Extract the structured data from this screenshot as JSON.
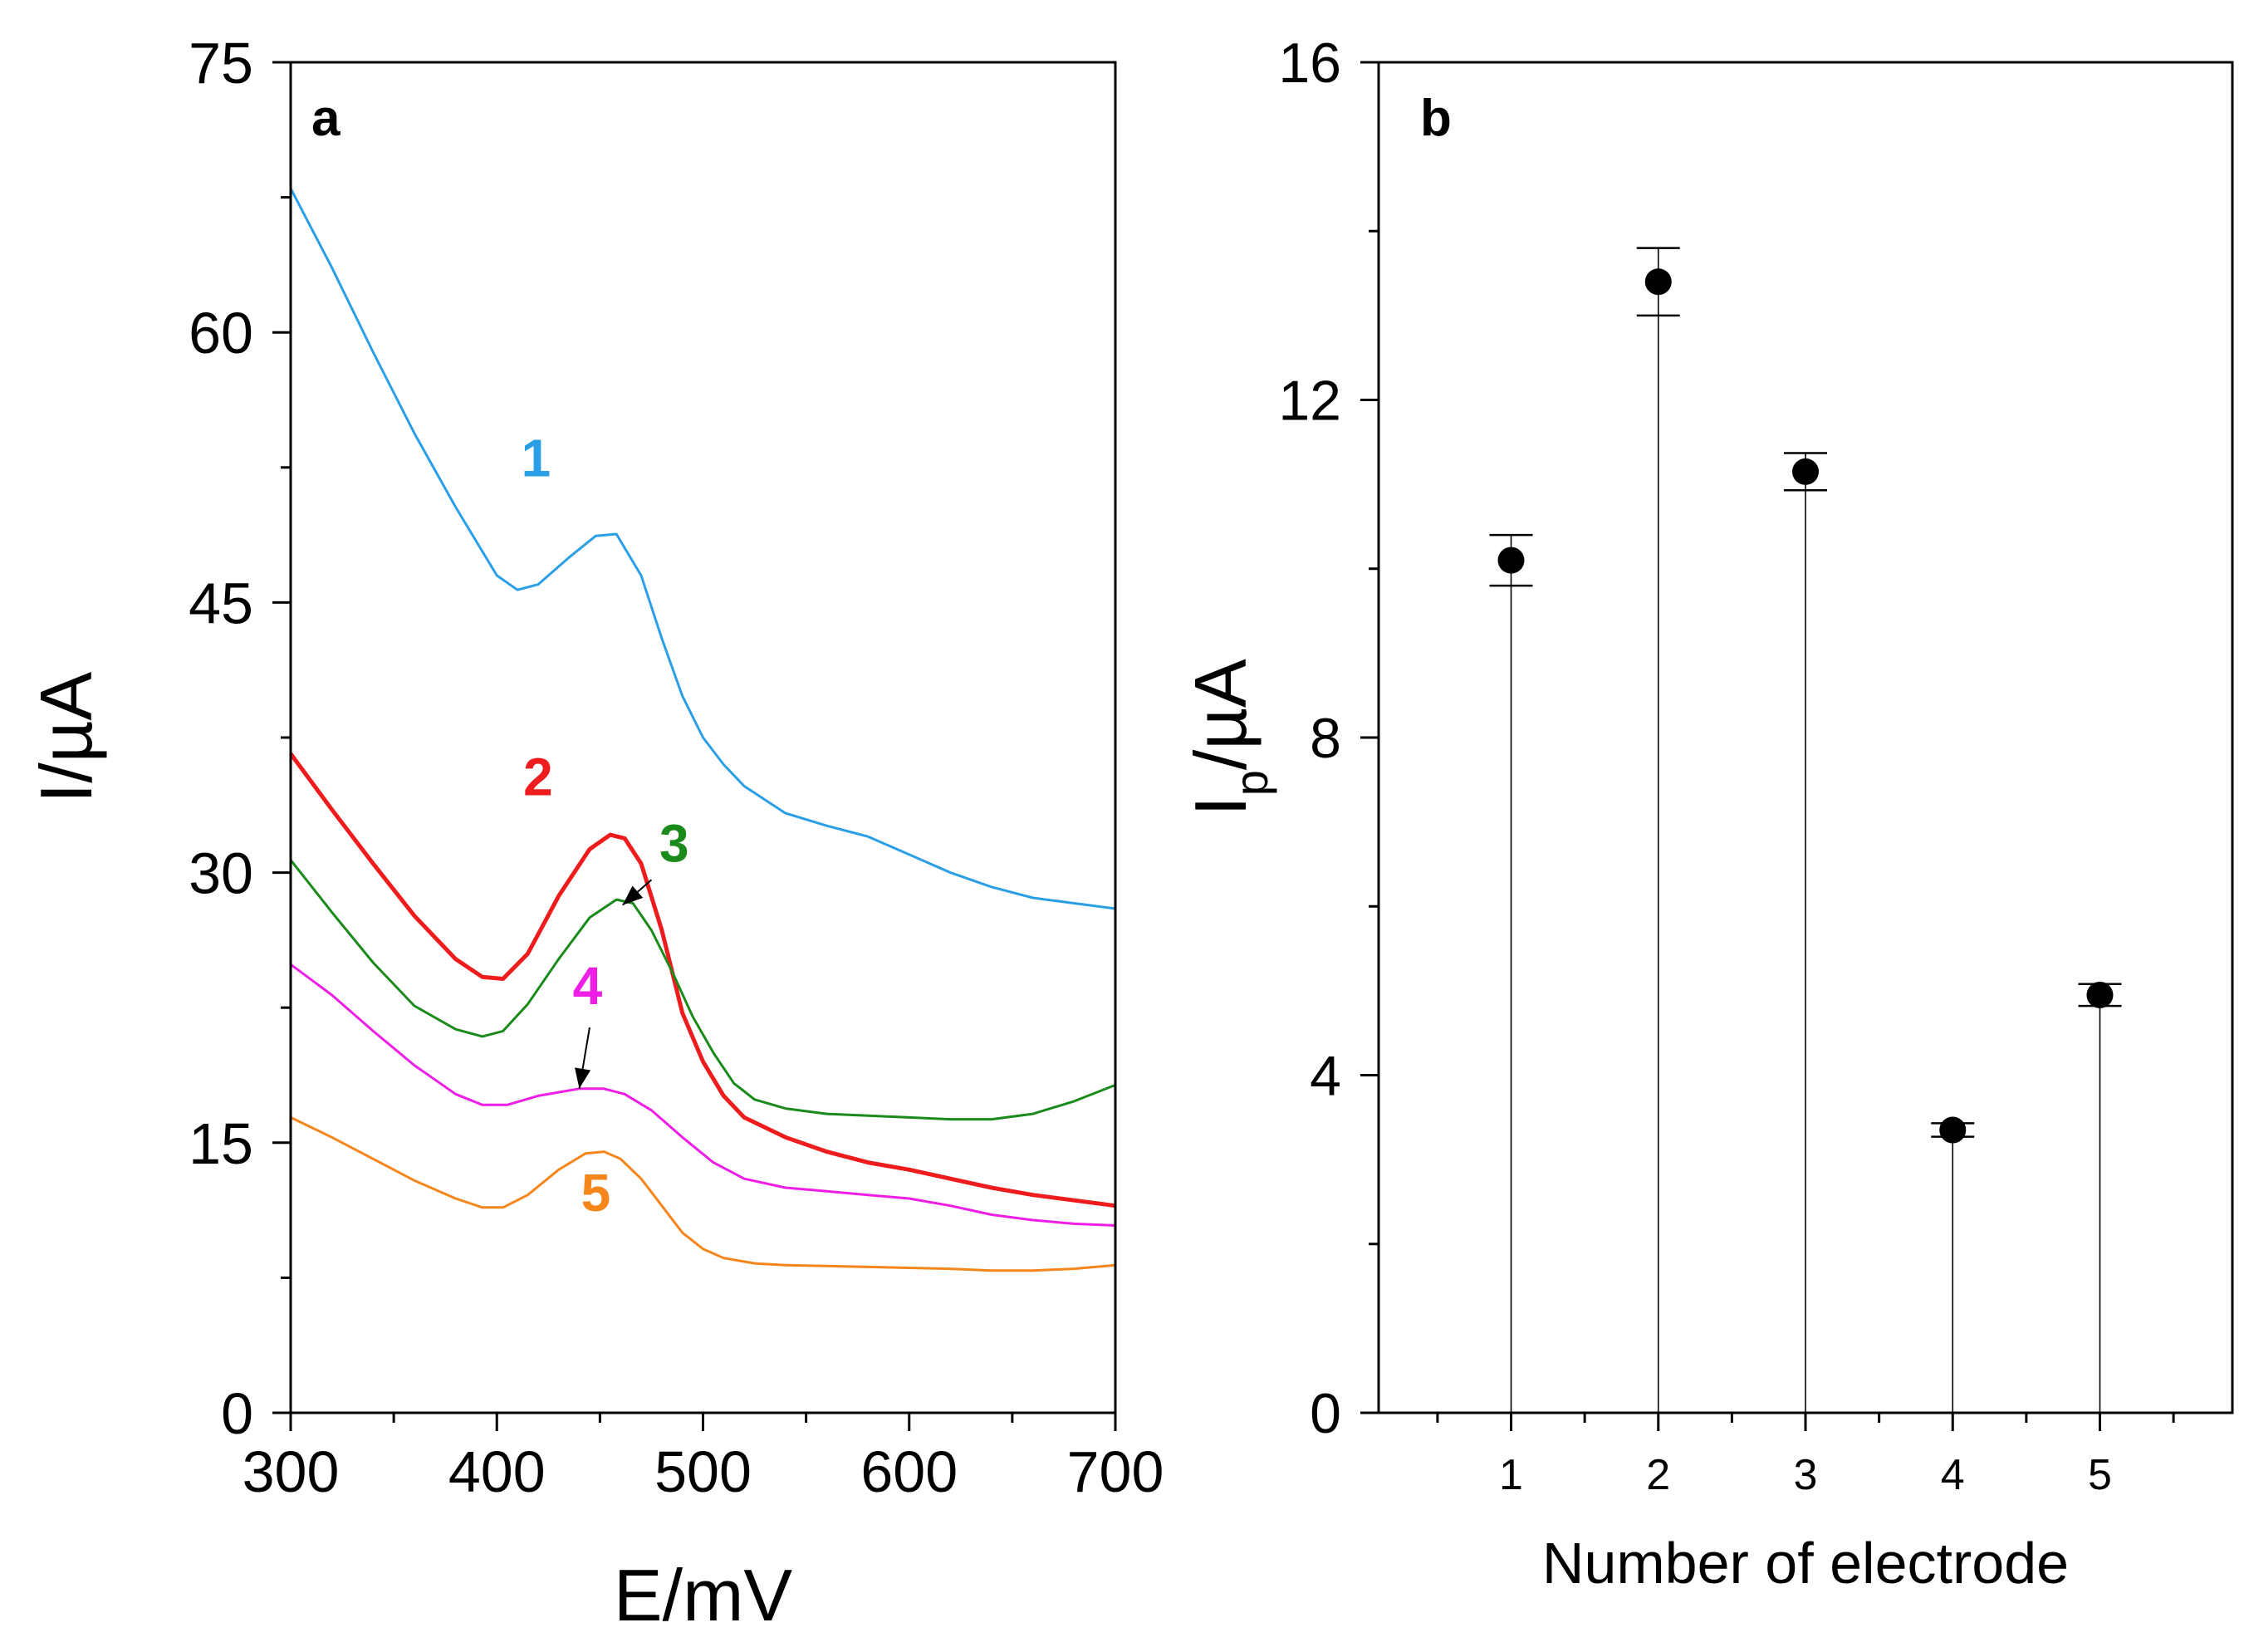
{
  "chart_data": [
    {
      "type": "line",
      "panel_label": "a",
      "xlabel": "E/mV",
      "ylabel": "I/µA",
      "xlim": [
        300,
        700
      ],
      "ylim": [
        0,
        75
      ],
      "xticks": [
        300,
        400,
        500,
        600,
        700
      ],
      "yticks": [
        0,
        15,
        30,
        45,
        60,
        75
      ],
      "x_minor_step": 50,
      "y_minor_step": 7.5,
      "grid": false,
      "series": [
        {
          "name": "1",
          "color": "#2b9fe6",
          "label_at": [
            419,
            52
          ],
          "points": [
            [
              300,
              68
            ],
            [
              320,
              63.6
            ],
            [
              340,
              58.9
            ],
            [
              360,
              54.4
            ],
            [
              380,
              50.3
            ],
            [
              400,
              46.5
            ],
            [
              410,
              45.7
            ],
            [
              420,
              46
            ],
            [
              435,
              47.5
            ],
            [
              448,
              48.7
            ],
            [
              458,
              48.8
            ],
            [
              470,
              46.5
            ],
            [
              480,
              43
            ],
            [
              490,
              39.8
            ],
            [
              500,
              37.5
            ],
            [
              510,
              36
            ],
            [
              520,
              34.8
            ],
            [
              540,
              33.3
            ],
            [
              560,
              32.6
            ],
            [
              580,
              32
            ],
            [
              600,
              31
            ],
            [
              620,
              30
            ],
            [
              640,
              29.2
            ],
            [
              660,
              28.6
            ],
            [
              680,
              28.3
            ],
            [
              700,
              28
            ]
          ]
        },
        {
          "name": "2",
          "color": "#ee1c1c",
          "label_at": [
            420,
            34.3
          ],
          "points": [
            [
              300,
              36.6
            ],
            [
              320,
              33.5
            ],
            [
              340,
              30.5
            ],
            [
              360,
              27.6
            ],
            [
              380,
              25.2
            ],
            [
              393,
              24.2
            ],
            [
              403,
              24.1
            ],
            [
              415,
              25.5
            ],
            [
              430,
              28.7
            ],
            [
              445,
              31.3
            ],
            [
              455,
              32.1
            ],
            [
              462,
              31.9
            ],
            [
              470,
              30.5
            ],
            [
              480,
              26.8
            ],
            [
              490,
              22.2
            ],
            [
              500,
              19.5
            ],
            [
              510,
              17.6
            ],
            [
              520,
              16.4
            ],
            [
              540,
              15.3
            ],
            [
              560,
              14.5
            ],
            [
              580,
              13.9
            ],
            [
              600,
              13.5
            ],
            [
              620,
              13
            ],
            [
              640,
              12.5
            ],
            [
              660,
              12.1
            ],
            [
              680,
              11.8
            ],
            [
              700,
              11.5
            ]
          ]
        },
        {
          "name": "3",
          "color": "#1a8a1a",
          "label_at": [
            486,
            30.6
          ],
          "arrow": [
            [
              475,
              29.6
            ],
            [
              461,
              28.2
            ]
          ],
          "points": [
            [
              300,
              30.7
            ],
            [
              320,
              27.8
            ],
            [
              340,
              25
            ],
            [
              360,
              22.6
            ],
            [
              380,
              21.3
            ],
            [
              393,
              20.9
            ],
            [
              403,
              21.2
            ],
            [
              415,
              22.7
            ],
            [
              430,
              25.2
            ],
            [
              445,
              27.5
            ],
            [
              458,
              28.5
            ],
            [
              466,
              28.3
            ],
            [
              475,
              26.8
            ],
            [
              485,
              24.5
            ],
            [
              495,
              22
            ],
            [
              505,
              20
            ],
            [
              515,
              18.3
            ],
            [
              525,
              17.4
            ],
            [
              540,
              16.9
            ],
            [
              560,
              16.6
            ],
            [
              580,
              16.5
            ],
            [
              600,
              16.4
            ],
            [
              620,
              16.3
            ],
            [
              640,
              16.3
            ],
            [
              660,
              16.6
            ],
            [
              680,
              17.3
            ],
            [
              700,
              18.2
            ]
          ]
        },
        {
          "name": "4",
          "color": "#ee1ee6",
          "label_at": [
            444,
            22.7
          ],
          "arrow": [
            [
              445,
              21.4
            ],
            [
              440,
              18
            ]
          ],
          "points": [
            [
              300,
              24.9
            ],
            [
              320,
              23.2
            ],
            [
              340,
              21.2
            ],
            [
              360,
              19.3
            ],
            [
              380,
              17.7
            ],
            [
              393,
              17.1
            ],
            [
              405,
              17.1
            ],
            [
              420,
              17.6
            ],
            [
              440,
              18
            ],
            [
              452,
              18
            ],
            [
              462,
              17.7
            ],
            [
              475,
              16.8
            ],
            [
              490,
              15.3
            ],
            [
              505,
              13.9
            ],
            [
              520,
              13
            ],
            [
              540,
              12.5
            ],
            [
              560,
              12.3
            ],
            [
              580,
              12.1
            ],
            [
              600,
              11.9
            ],
            [
              620,
              11.5
            ],
            [
              640,
              11
            ],
            [
              660,
              10.7
            ],
            [
              680,
              10.5
            ],
            [
              700,
              10.4
            ]
          ]
        },
        {
          "name": "5",
          "color": "#f4861c",
          "label_at": [
            448,
            11.2
          ],
          "points": [
            [
              300,
              16.4
            ],
            [
              320,
              15.3
            ],
            [
              340,
              14.1
            ],
            [
              360,
              12.9
            ],
            [
              380,
              11.9
            ],
            [
              393,
              11.4
            ],
            [
              403,
              11.4
            ],
            [
              415,
              12.1
            ],
            [
              430,
              13.5
            ],
            [
              443,
              14.4
            ],
            [
              452,
              14.5
            ],
            [
              460,
              14.1
            ],
            [
              470,
              13
            ],
            [
              480,
              11.5
            ],
            [
              490,
              10
            ],
            [
              500,
              9.1
            ],
            [
              510,
              8.6
            ],
            [
              525,
              8.3
            ],
            [
              540,
              8.2
            ],
            [
              560,
              8.15
            ],
            [
              580,
              8.1
            ],
            [
              600,
              8.05
            ],
            [
              620,
              8
            ],
            [
              640,
              7.9
            ],
            [
              660,
              7.9
            ],
            [
              680,
              8
            ],
            [
              700,
              8.2
            ]
          ]
        }
      ]
    },
    {
      "type": "scatter",
      "panel_label": "b",
      "xlabel": "Number of electrode",
      "ylabel_main": "I",
      "ylabel_sub": "p",
      "ylabel_rest": "/µA",
      "xlim": [
        0.1,
        5.9
      ],
      "ylim": [
        0,
        16
      ],
      "xticks": [
        1,
        2,
        3,
        4,
        5
      ],
      "yticks": [
        0,
        4,
        8,
        12,
        16
      ],
      "x_minor_step": 0.5,
      "y_minor_step": 2,
      "grid": false,
      "drop_lines": true,
      "points": [
        {
          "x": 1,
          "y": 10.1,
          "err": 0.3
        },
        {
          "x": 2,
          "y": 13.4,
          "err": 0.4
        },
        {
          "x": 3,
          "y": 11.15,
          "err": 0.22
        },
        {
          "x": 4,
          "y": 3.35,
          "err": 0.08
        },
        {
          "x": 5,
          "y": 4.95,
          "err": 0.13
        }
      ]
    }
  ]
}
